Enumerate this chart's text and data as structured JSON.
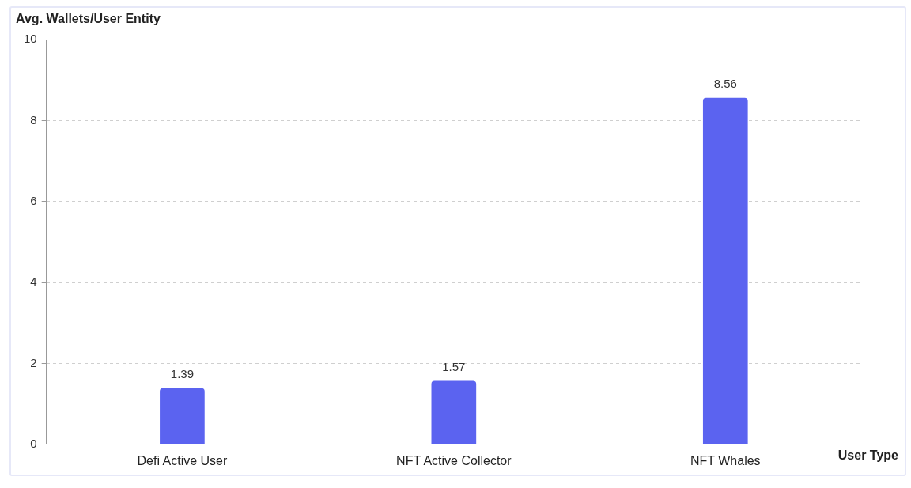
{
  "chart_data": {
    "type": "bar",
    "ylabel": "Avg. Wallets/User Entity",
    "xlabel": "User Type",
    "categories": [
      "Defi Active User",
      "NFT Active Collector",
      "NFT Whales"
    ],
    "values": [
      1.39,
      1.57,
      8.56
    ],
    "color": "#5b63f0",
    "ylim": [
      0,
      10
    ],
    "yticks": [
      0,
      2,
      4,
      6,
      8,
      10
    ],
    "grid": "y",
    "data_labels": true
  }
}
